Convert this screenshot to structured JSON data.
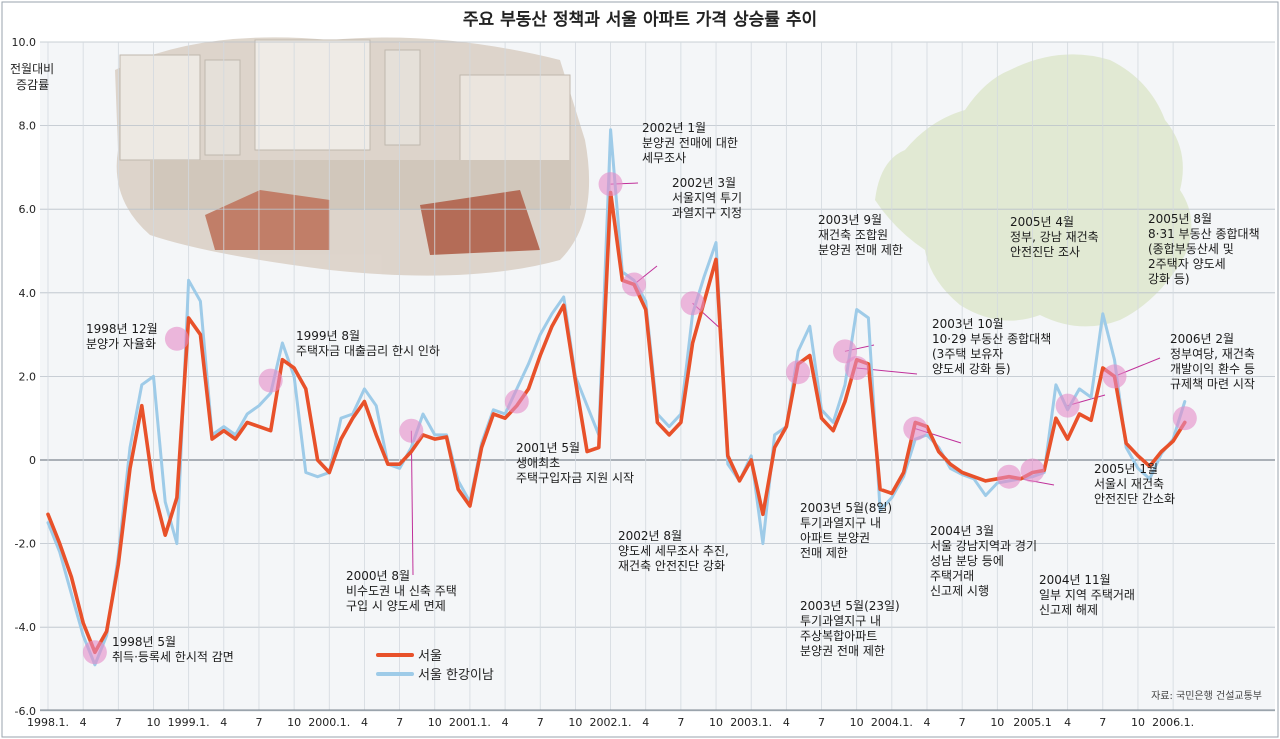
{
  "chart_data": {
    "type": "line",
    "title": "주요 부동산 정책과 서울 아파트 가격 상승률 추이",
    "ylabel": [
      "전월대비",
      "증감률"
    ],
    "ylim": [
      -6.0,
      10.0
    ],
    "yticks": [
      "-6.0",
      "-4.0",
      "-2.0",
      "0",
      "2.0",
      "4.0",
      "6.0",
      "8.0",
      "10.0"
    ],
    "xticks": [
      {
        "i": 0,
        "label": "1998.1."
      },
      {
        "i": 3,
        "label": "4"
      },
      {
        "i": 6,
        "label": "7"
      },
      {
        "i": 9,
        "label": "10"
      },
      {
        "i": 12,
        "label": "1999.1."
      },
      {
        "i": 15,
        "label": "4"
      },
      {
        "i": 18,
        "label": "7"
      },
      {
        "i": 21,
        "label": "10"
      },
      {
        "i": 24,
        "label": "2000.1."
      },
      {
        "i": 27,
        "label": "4"
      },
      {
        "i": 30,
        "label": "7"
      },
      {
        "i": 33,
        "label": "10"
      },
      {
        "i": 36,
        "label": "2001.1."
      },
      {
        "i": 39,
        "label": "4"
      },
      {
        "i": 42,
        "label": "7"
      },
      {
        "i": 45,
        "label": "10"
      },
      {
        "i": 48,
        "label": "2002.1."
      },
      {
        "i": 51,
        "label": "4"
      },
      {
        "i": 54,
        "label": "7"
      },
      {
        "i": 57,
        "label": "10"
      },
      {
        "i": 60,
        "label": "2003.1."
      },
      {
        "i": 63,
        "label": "4"
      },
      {
        "i": 66,
        "label": "7"
      },
      {
        "i": 69,
        "label": "10"
      },
      {
        "i": 72,
        "label": "2004.1."
      },
      {
        "i": 75,
        "label": "4"
      },
      {
        "i": 78,
        "label": "7"
      },
      {
        "i": 81,
        "label": "10"
      },
      {
        "i": 84,
        "label": "2005.1"
      },
      {
        "i": 87,
        "label": "4"
      },
      {
        "i": 90,
        "label": "7"
      },
      {
        "i": 93,
        "label": "10"
      },
      {
        "i": 96,
        "label": "2006.1."
      }
    ],
    "series": [
      {
        "name": "서울",
        "color": "#e8512a",
        "values": [
          -1.3,
          -2.0,
          -2.8,
          -3.9,
          -4.6,
          -4.1,
          -2.5,
          -0.2,
          1.3,
          -0.7,
          -1.8,
          -0.9,
          3.4,
          3.0,
          0.5,
          0.7,
          0.5,
          0.9,
          0.8,
          0.7,
          2.4,
          2.2,
          1.7,
          0.0,
          -0.3,
          0.5,
          1.0,
          1.4,
          0.6,
          -0.1,
          -0.1,
          0.2,
          0.6,
          0.5,
          0.55,
          -0.7,
          -1.1,
          0.3,
          1.1,
          1.0,
          1.3,
          1.7,
          2.5,
          3.2,
          3.7,
          1.9,
          0.2,
          0.3,
          6.4,
          4.3,
          4.2,
          3.6,
          0.9,
          0.6,
          0.9,
          2.8,
          3.8,
          4.8,
          0.1,
          -0.5,
          0.0,
          -1.3,
          0.3,
          0.8,
          2.3,
          2.5,
          1.0,
          0.7,
          1.4,
          2.4,
          2.3,
          -0.7,
          -0.8,
          -0.3,
          0.9,
          0.8,
          0.2,
          -0.1,
          -0.3,
          -0.4,
          -0.5,
          -0.45,
          -0.4,
          -0.45,
          -0.3,
          -0.25,
          1.0,
          0.5,
          1.1,
          0.95,
          2.2,
          2.0,
          0.4,
          0.1,
          -0.15,
          0.2,
          0.45,
          0.9
        ]
      },
      {
        "name": "서울 한강이남",
        "color": "#9ecbe8",
        "values": [
          -1.5,
          -2.2,
          -3.2,
          -4.2,
          -4.9,
          -4.2,
          -2.3,
          0.3,
          1.8,
          2.0,
          -1.0,
          -2.0,
          4.3,
          3.8,
          0.6,
          0.8,
          0.6,
          1.1,
          1.3,
          1.6,
          2.8,
          2.0,
          -0.3,
          -0.4,
          -0.3,
          1.0,
          1.1,
          1.7,
          1.3,
          -0.1,
          -0.2,
          0.3,
          1.1,
          0.6,
          0.6,
          -0.5,
          -1.0,
          0.4,
          1.2,
          1.1,
          1.7,
          2.3,
          3.0,
          3.5,
          3.9,
          2.0,
          1.3,
          0.6,
          7.9,
          4.5,
          4.3,
          3.8,
          1.1,
          0.8,
          1.1,
          3.5,
          4.4,
          5.2,
          -0.1,
          -0.5,
          0.1,
          -2.0,
          0.6,
          0.8,
          2.6,
          3.2,
          1.2,
          0.9,
          1.8,
          3.6,
          3.4,
          -1.2,
          -0.9,
          -0.4,
          0.5,
          0.6,
          0.3,
          -0.2,
          -0.35,
          -0.45,
          -0.85,
          -0.55,
          -0.5,
          -0.45,
          -0.4,
          -0.3,
          1.8,
          1.2,
          1.7,
          1.5,
          3.5,
          2.4,
          0.3,
          -0.2,
          -0.45,
          0.15,
          0.5,
          1.4
        ]
      }
    ],
    "events": [
      {
        "i": 4,
        "y": -4.6,
        "text": [
          "1998년 5월",
          "취득·등록세 한시적 감면"
        ]
      },
      {
        "i": 11,
        "y": 2.9,
        "text": [
          "1998년 12월",
          "분양가 자율화"
        ]
      },
      {
        "i": 19,
        "y": 1.9,
        "text": [
          "1999년 8월",
          "주택자금 대출금리 한시 인하"
        ]
      },
      {
        "i": 31,
        "y": 0.7,
        "text": [
          "2000년 8월",
          "비수도권 내 신축 주택",
          "구입 시 양도세 면제"
        ]
      },
      {
        "i": 40,
        "y": 1.4,
        "text": [
          "2001년 5월",
          "생애최초",
          "주택구입자금 지원 시작"
        ]
      },
      {
        "i": 48,
        "y": 6.6,
        "text": [
          "2002년 1월",
          "분양권 전매에 대한",
          "세무조사"
        ]
      },
      {
        "i": 50,
        "y": 4.2,
        "text": [
          "2002년 3월",
          "서울지역 투기",
          "과열지구 지정"
        ]
      },
      {
        "i": 55,
        "y": 3.75,
        "text": [
          "2002년 8월",
          "양도세 세무조사 추진,",
          "재건축 안전진단 강화"
        ]
      },
      {
        "i": 64,
        "y": 2.1,
        "text": [
          "2003년 5월(8일)",
          "투기과열지구 내",
          "아파트 분양권",
          "전매 제한"
        ]
      },
      {
        "i": 64,
        "y": 2.1,
        "text": [
          "2003년 5월(23일)",
          "투기과열지구 내",
          "주상복합아파트",
          "분양권 전매 제한"
        ]
      },
      {
        "i": 68,
        "y": 2.6,
        "text": [
          "2003년 9월",
          "재건축 조합원",
          "분양권 전매 제한"
        ]
      },
      {
        "i": 69,
        "y": 2.2,
        "text": [
          "2003년 10월",
          "10·29 부동산 종합대책",
          "(3주택 보유자",
          "양도세 강화 등)"
        ]
      },
      {
        "i": 74,
        "y": 0.75,
        "text": [
          "2004년 3월",
          "서울 강남지역과 경기",
          "성남 분당 등에",
          "주택거래",
          "신고제 시행"
        ]
      },
      {
        "i": 82,
        "y": -0.4,
        "text": [
          "2004년 11월",
          "일부 지역 주택거래",
          "신고제 해제"
        ]
      },
      {
        "i": 84,
        "y": -0.25,
        "text": [
          "2005년 1월",
          "서울시 재건축",
          "안전진단 간소화"
        ]
      },
      {
        "i": 87,
        "y": 1.3,
        "text": [
          "2005년 4월",
          "정부, 강남 재건축",
          "안전진단 조사"
        ]
      },
      {
        "i": 91,
        "y": 2.0,
        "text": [
          "2005년 8월",
          "8·31 부동산 종합대책",
          "(종합부동산세 및",
          "2주택자 양도세",
          "강화 등)"
        ]
      },
      {
        "i": 97,
        "y": 1.0,
        "text": [
          "2006년 2월",
          "정부여당, 재건축",
          "개발이익 환수 등",
          "규제책 마련 시작"
        ]
      }
    ],
    "legend": [
      {
        "name": "서울",
        "color": "#e8512a"
      },
      {
        "name": "서울 한강이남",
        "color": "#9ecbe8"
      }
    ],
    "source": "자료: 국민은행 건설교통부"
  }
}
